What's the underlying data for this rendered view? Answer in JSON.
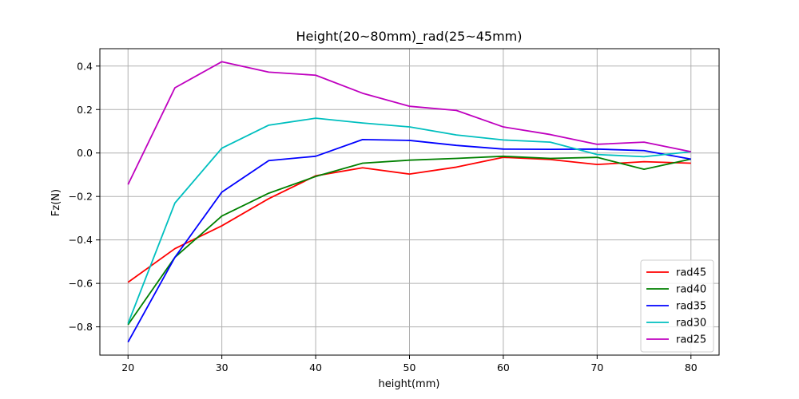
{
  "chart_data": {
    "type": "line",
    "title": "Height(20~80mm)_rad(25~45mm)",
    "xlabel": "height(mm)",
    "ylabel": "Fz(N)",
    "xlim": [
      17,
      83
    ],
    "ylim": [
      -0.93,
      0.48
    ],
    "xticks": [
      20,
      30,
      40,
      50,
      60,
      70,
      80
    ],
    "yticks": [
      -0.8,
      -0.6,
      -0.4,
      -0.2,
      0.0,
      0.2,
      0.4
    ],
    "xtick_labels": [
      "20",
      "30",
      "40",
      "50",
      "60",
      "70",
      "80"
    ],
    "ytick_labels": [
      "−0.8",
      "−0.6",
      "−0.4",
      "−0.2",
      "0.0",
      "0.2",
      "0.4"
    ],
    "grid": true,
    "legend_position": "lower-right",
    "x": [
      20,
      25,
      30,
      35,
      40,
      45,
      50,
      55,
      60,
      65,
      70,
      75,
      80
    ],
    "series": [
      {
        "name": "rad45",
        "color": "#ff0000",
        "values": [
          -0.595,
          -0.44,
          -0.335,
          -0.21,
          -0.105,
          -0.068,
          -0.097,
          -0.065,
          -0.02,
          -0.03,
          -0.053,
          -0.04,
          -0.047
        ]
      },
      {
        "name": "rad40",
        "color": "#008000",
        "values": [
          -0.79,
          -0.48,
          -0.29,
          -0.185,
          -0.108,
          -0.047,
          -0.033,
          -0.025,
          -0.015,
          -0.025,
          -0.02,
          -0.075,
          -0.028
        ]
      },
      {
        "name": "rad35",
        "color": "#0000ff",
        "values": [
          -0.87,
          -0.48,
          -0.18,
          -0.035,
          -0.015,
          0.062,
          0.058,
          0.035,
          0.018,
          0.017,
          0.018,
          0.011,
          -0.028
        ]
      },
      {
        "name": "rad30",
        "color": "#00bfbf",
        "values": [
          -0.785,
          -0.23,
          0.022,
          0.128,
          0.16,
          0.138,
          0.12,
          0.083,
          0.06,
          0.05,
          -0.007,
          -0.017,
          0.006
        ]
      },
      {
        "name": "rad25",
        "color": "#bf00bf",
        "values": [
          -0.145,
          0.3,
          0.42,
          0.372,
          0.358,
          0.275,
          0.215,
          0.196,
          0.12,
          0.085,
          0.04,
          0.05,
          0.006
        ]
      }
    ]
  }
}
